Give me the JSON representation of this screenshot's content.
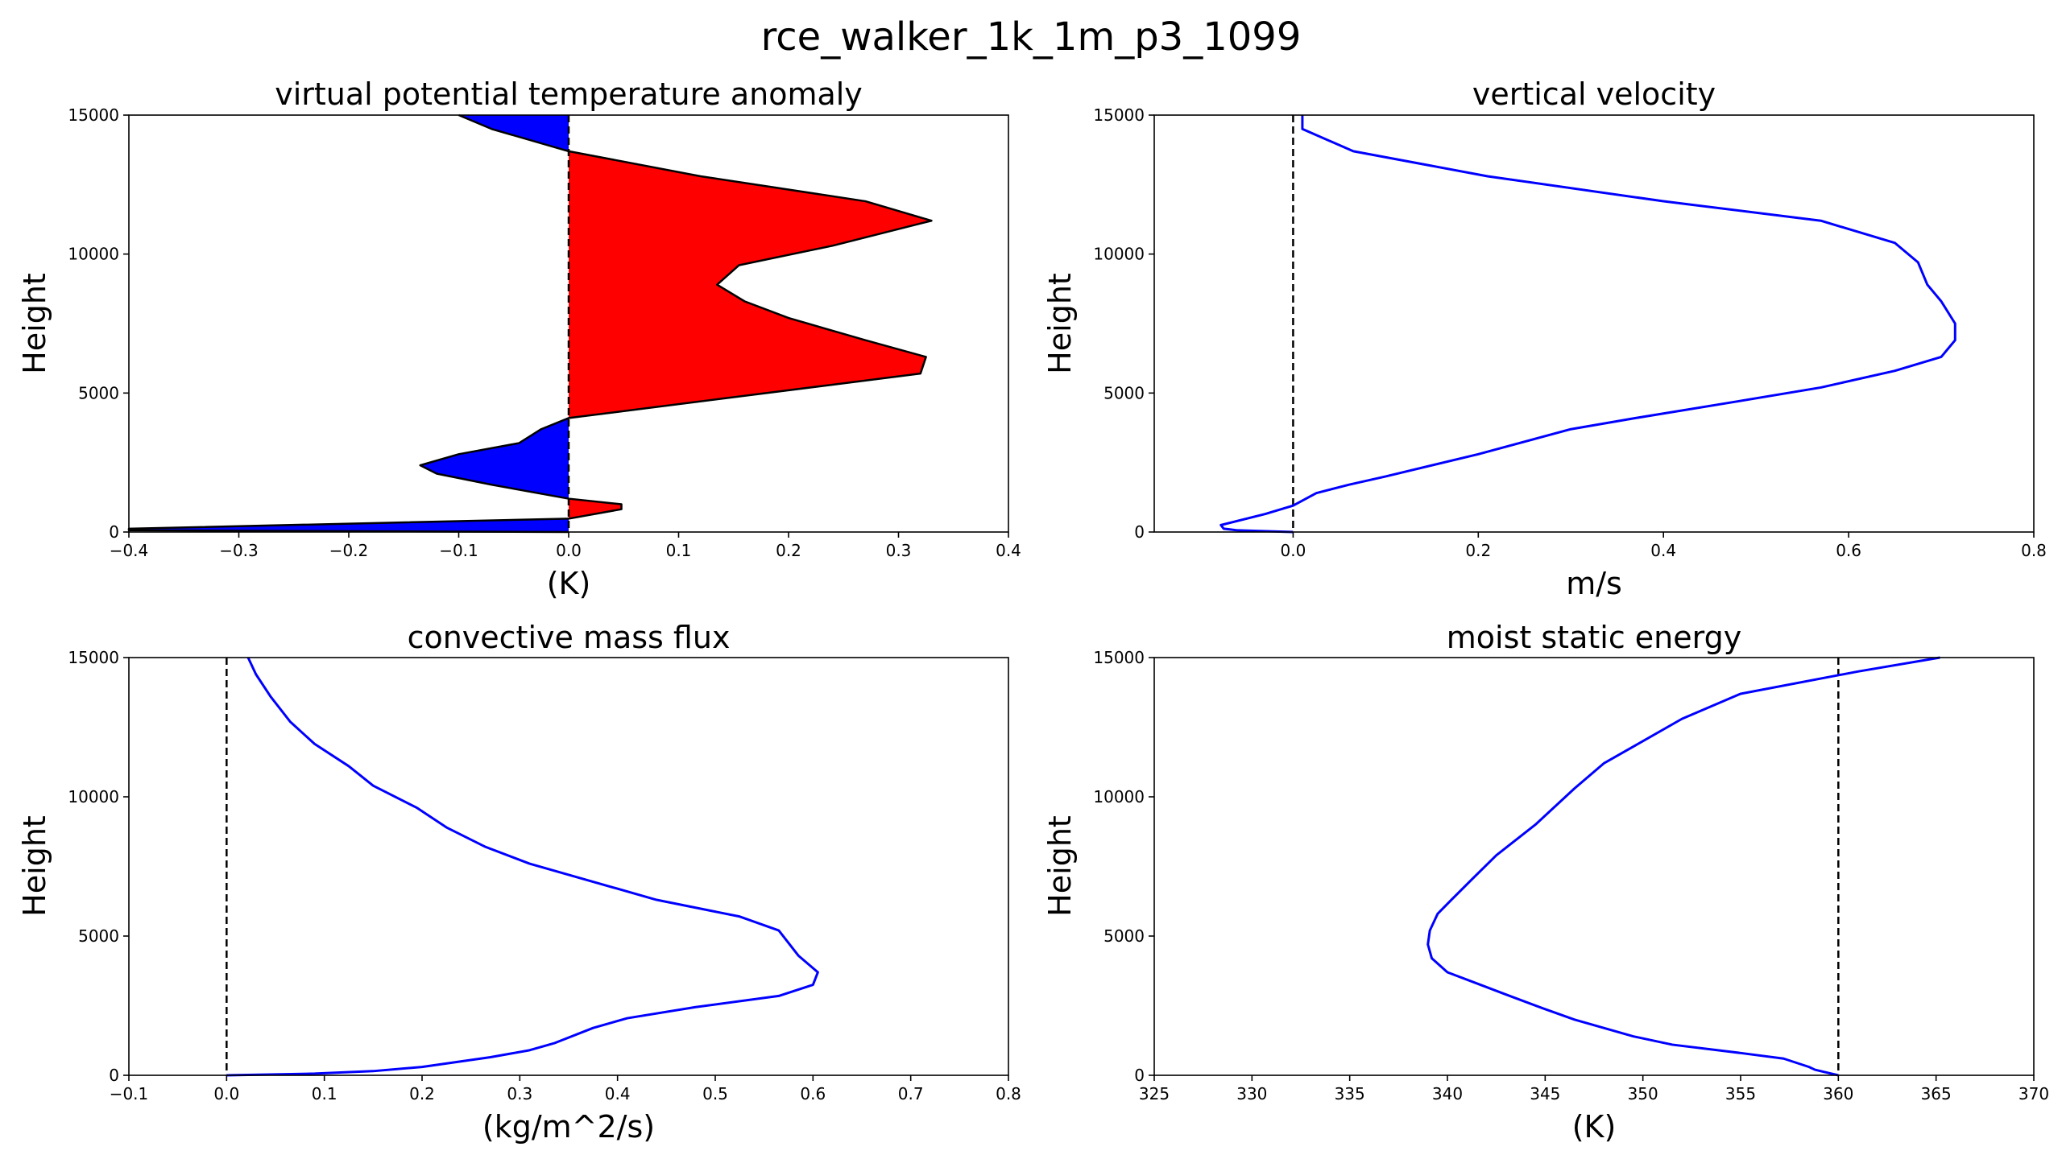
{
  "figure": {
    "title": "rce_walker_1k_1m_p3_1099"
  },
  "chart_data": [
    {
      "id": "theta_v",
      "type": "area",
      "title": "virtual potential temperature anomaly",
      "xlabel": "(K)",
      "ylabel": "Height",
      "xlim": [
        -0.4,
        0.4
      ],
      "ylim": [
        0,
        15000
      ],
      "xticks": [
        -0.4,
        -0.3,
        -0.2,
        -0.1,
        0.0,
        0.1,
        0.2,
        0.3,
        0.4
      ],
      "xtick_labels": [
        "−0.4",
        "−0.3",
        "−0.2",
        "−0.1",
        "0.0",
        "0.1",
        "0.2",
        "0.3",
        "0.4"
      ],
      "yticks": [
        0,
        5000,
        10000,
        15000
      ],
      "ytick_labels": [
        "0",
        "5000",
        "10000",
        "15000"
      ],
      "grid": false,
      "zero_line": 0,
      "positive_color": "#ff0000",
      "negative_color": "#0000ff",
      "profile": [
        {
          "x": 0.0,
          "y": 0
        },
        {
          "x": -0.4,
          "y": 60
        },
        {
          "x": -0.4,
          "y": 120
        },
        {
          "x": 0.0,
          "y": 480
        },
        {
          "x": 0.048,
          "y": 820
        },
        {
          "x": 0.048,
          "y": 1000
        },
        {
          "x": 0.0,
          "y": 1200
        },
        {
          "x": -0.07,
          "y": 1700
        },
        {
          "x": -0.12,
          "y": 2100
        },
        {
          "x": -0.135,
          "y": 2400
        },
        {
          "x": -0.1,
          "y": 2800
        },
        {
          "x": -0.045,
          "y": 3200
        },
        {
          "x": -0.025,
          "y": 3700
        },
        {
          "x": 0.0,
          "y": 4100
        },
        {
          "x": 0.24,
          "y": 5300
        },
        {
          "x": 0.32,
          "y": 5700
        },
        {
          "x": 0.325,
          "y": 6300
        },
        {
          "x": 0.27,
          "y": 6900
        },
        {
          "x": 0.2,
          "y": 7700
        },
        {
          "x": 0.16,
          "y": 8300
        },
        {
          "x": 0.135,
          "y": 8900
        },
        {
          "x": 0.155,
          "y": 9600
        },
        {
          "x": 0.24,
          "y": 10300
        },
        {
          "x": 0.33,
          "y": 11200
        },
        {
          "x": 0.27,
          "y": 11900
        },
        {
          "x": 0.12,
          "y": 12800
        },
        {
          "x": 0.0,
          "y": 13700
        },
        {
          "x": -0.07,
          "y": 14500
        },
        {
          "x": -0.1,
          "y": 15000
        }
      ]
    },
    {
      "id": "w",
      "type": "line",
      "title": "vertical velocity",
      "xlabel": "m/s",
      "ylabel": "Height",
      "xlim": [
        -0.15,
        0.8
      ],
      "ylim": [
        0,
        15000
      ],
      "xticks": [
        0.0,
        0.2,
        0.4,
        0.6,
        0.8
      ],
      "xtick_labels": [
        "0.0",
        "0.2",
        "0.4",
        "0.6",
        "0.8"
      ],
      "yticks": [
        0,
        5000,
        10000,
        15000
      ],
      "ytick_labels": [
        "0",
        "5000",
        "10000",
        "15000"
      ],
      "grid": false,
      "zero_line": 0,
      "line_color": "#0000ff",
      "series": [
        {
          "x": [
            0.0,
            -0.06,
            -0.075,
            -0.078,
            -0.03,
            0.0,
            0.025,
            0.06,
            0.1,
            0.2,
            0.3,
            0.37,
            0.48,
            0.57,
            0.65,
            0.7,
            0.715,
            0.715,
            0.7,
            0.685,
            0.675,
            0.65,
            0.57,
            0.4,
            0.21,
            0.065,
            0.01,
            0.01
          ],
          "y": [
            0,
            60,
            120,
            250,
            650,
            950,
            1400,
            1700,
            2000,
            2800,
            3700,
            4100,
            4700,
            5200,
            5800,
            6300,
            6900,
            7500,
            8300,
            8900,
            9700,
            10400,
            11200,
            11900,
            12800,
            13700,
            14500,
            15000
          ]
        }
      ]
    },
    {
      "id": "mass_flux",
      "type": "line",
      "title": "convective mass flux",
      "xlabel": "(kg/m^2/s)",
      "ylabel": "Height",
      "xlim": [
        -0.1,
        0.8
      ],
      "ylim": [
        0,
        15000
      ],
      "xticks": [
        -0.1,
        0.0,
        0.1,
        0.2,
        0.3,
        0.4,
        0.5,
        0.6,
        0.7,
        0.8
      ],
      "xtick_labels": [
        "−0.1",
        "0.0",
        "0.1",
        "0.2",
        "0.3",
        "0.4",
        "0.5",
        "0.6",
        "0.7",
        "0.8"
      ],
      "yticks": [
        0,
        5000,
        10000,
        15000
      ],
      "ytick_labels": [
        "0",
        "5000",
        "10000",
        "15000"
      ],
      "grid": false,
      "zero_line": 0,
      "line_color": "#0000ff",
      "series": [
        {
          "x": [
            0.0,
            0.09,
            0.15,
            0.2,
            0.27,
            0.31,
            0.335,
            0.375,
            0.41,
            0.48,
            0.565,
            0.6,
            0.605,
            0.585,
            0.565,
            0.525,
            0.44,
            0.31,
            0.265,
            0.225,
            0.195,
            0.15,
            0.125,
            0.09,
            0.065,
            0.045,
            0.03,
            0.022
          ],
          "y": [
            0,
            60,
            150,
            300,
            650,
            900,
            1150,
            1700,
            2050,
            2450,
            2850,
            3250,
            3700,
            4300,
            5200,
            5700,
            6300,
            7600,
            8200,
            8900,
            9600,
            10400,
            11100,
            11900,
            12700,
            13600,
            14400,
            15000
          ]
        }
      ]
    },
    {
      "id": "mse",
      "type": "line",
      "title": "moist static energy",
      "xlabel": "(K)",
      "ylabel": "Height",
      "xlim": [
        325,
        370
      ],
      "ylim": [
        0,
        15000
      ],
      "xticks": [
        325,
        330,
        335,
        340,
        345,
        350,
        355,
        360,
        365,
        370
      ],
      "xtick_labels": [
        "325",
        "330",
        "335",
        "340",
        "345",
        "350",
        "355",
        "360",
        "365",
        "370"
      ],
      "yticks": [
        0,
        5000,
        10000,
        15000
      ],
      "ytick_labels": [
        "0",
        "5000",
        "10000",
        "15000"
      ],
      "grid": false,
      "zero_line": 360,
      "line_color": "#0000ff",
      "series": [
        {
          "x": [
            360.0,
            358.8,
            358.5,
            357.2,
            355.0,
            351.5,
            349.5,
            348.0,
            346.5,
            344.9,
            343.0,
            341.5,
            340.0,
            339.2,
            339.0,
            339.1,
            339.5,
            340.2,
            341.2,
            342.5,
            344.5,
            346.5,
            348.0,
            350.0,
            352.0,
            355.0,
            361.0,
            365.2
          ],
          "y": [
            0,
            200,
            300,
            600,
            800,
            1100,
            1400,
            1700,
            2000,
            2400,
            2900,
            3300,
            3700,
            4200,
            4700,
            5200,
            5800,
            6300,
            7000,
            7900,
            9000,
            10300,
            11200,
            12000,
            12800,
            13700,
            14500,
            15000
          ]
        }
      ]
    }
  ]
}
